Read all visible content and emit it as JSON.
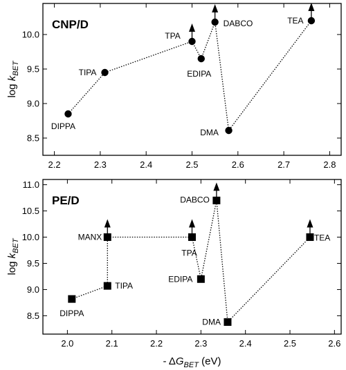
{
  "chart_data": [
    {
      "type": "scatter",
      "title": "CNP/D",
      "xlabel": "",
      "ylabel": {
        "prefix": "log ",
        "var": "k",
        "sub": "BET"
      },
      "xlim": [
        2.175,
        2.825
      ],
      "ylim": [
        8.25,
        10.45
      ],
      "xticks": [
        "2.2",
        "2.3",
        "2.4",
        "2.5",
        "2.6",
        "2.7",
        "2.8"
      ],
      "yticks": [
        "8.5",
        "9.0",
        "9.5",
        "10.0"
      ],
      "marker": "circle",
      "grid": false,
      "points": [
        {
          "label": "DIPPA",
          "x": 2.23,
          "y": 8.85,
          "lower_bound": false
        },
        {
          "label": "TIPA",
          "x": 2.31,
          "y": 9.45,
          "lower_bound": false
        },
        {
          "label": "TPA",
          "x": 2.5,
          "y": 9.9,
          "lower_bound": true
        },
        {
          "label": "EDIPA",
          "x": 2.52,
          "y": 9.65,
          "lower_bound": false
        },
        {
          "label": "DABCO",
          "x": 2.55,
          "y": 10.18,
          "lower_bound": true
        },
        {
          "label": "DMA",
          "x": 2.58,
          "y": 8.61,
          "lower_bound": false
        },
        {
          "label": "TEA",
          "x": 2.76,
          "y": 10.2,
          "lower_bound": true
        }
      ]
    },
    {
      "type": "scatter",
      "title": "PE/D",
      "xlabel": {
        "prefix": "- Δ",
        "var": "G",
        "sub": "BET",
        "unit": " (eV)"
      },
      "ylabel": {
        "prefix": "log ",
        "var": "k",
        "sub": "BET"
      },
      "xlim": [
        1.945,
        2.615
      ],
      "ylim": [
        8.15,
        11.1
      ],
      "xticks": [
        "2.0",
        "2.1",
        "2.2",
        "2.3",
        "2.4",
        "2.5",
        "2.6"
      ],
      "yticks": [
        "8.5",
        "9.0",
        "9.5",
        "10.0",
        "10.5",
        "11.0"
      ],
      "marker": "square",
      "grid": false,
      "points": [
        {
          "label": "DIPPA",
          "x": 2.01,
          "y": 8.82,
          "lower_bound": false
        },
        {
          "label": "TIPA",
          "x": 2.09,
          "y": 9.07,
          "lower_bound": false
        },
        {
          "label": "MANX",
          "x": 2.09,
          "y": 10.0,
          "lower_bound": true
        },
        {
          "label": "TPA",
          "x": 2.28,
          "y": 10.0,
          "lower_bound": true
        },
        {
          "label": "EDIPA",
          "x": 2.3,
          "y": 9.2,
          "lower_bound": false
        },
        {
          "label": "DABCO",
          "x": 2.335,
          "y": 10.7,
          "lower_bound": true
        },
        {
          "label": "DMA",
          "x": 2.36,
          "y": 8.38,
          "lower_bound": false
        },
        {
          "label": "TEA",
          "x": 2.545,
          "y": 10.0,
          "lower_bound": true
        }
      ]
    }
  ]
}
